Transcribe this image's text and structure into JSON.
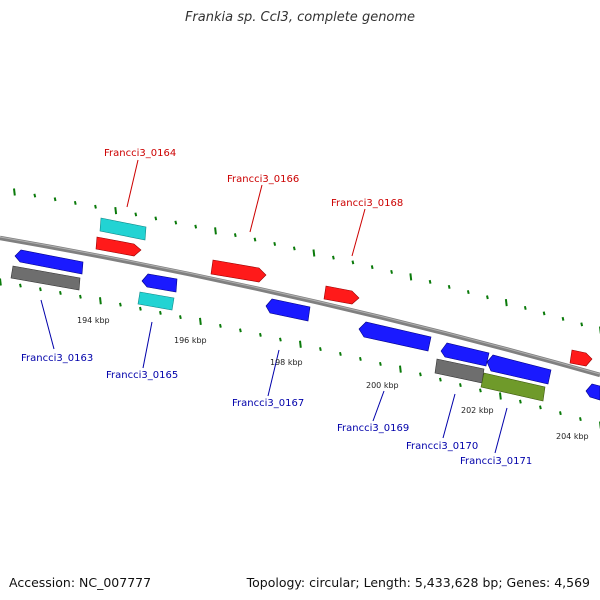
{
  "title": "Frankia sp. CcI3, complete genome",
  "footer": {
    "accession": "Accession: NC_007777",
    "summary": "Topology: circular; Length: 5,433,628 bp; Genes: 4,569"
  },
  "colors": {
    "backbone": "#808080",
    "tick": "#0a7a0a",
    "forward_cds": "#ff1a1a",
    "reverse_cds": "#1a1aff",
    "cyan_feature": "#22d3d3",
    "gray_feature": "#6e6e6e",
    "olive_feature": "#6f9a2a",
    "forward_label": "#cc0000",
    "reverse_label": "#0000aa",
    "kbp_label": "#222222"
  },
  "scale": {
    "unit": "kbp",
    "labels": [
      "194 kbp",
      "196 kbp",
      "198 kbp",
      "200 kbp",
      "202 kbp",
      "204 kbp"
    ]
  },
  "genes": {
    "forward_labels": [
      "Francci3_0164",
      "Francci3_0166",
      "Francci3_0168"
    ],
    "reverse_labels": [
      "Francci3_0163",
      "Francci3_0165",
      "Francci3_0167",
      "Francci3_0169",
      "Francci3_0170",
      "Francci3_0171"
    ]
  }
}
